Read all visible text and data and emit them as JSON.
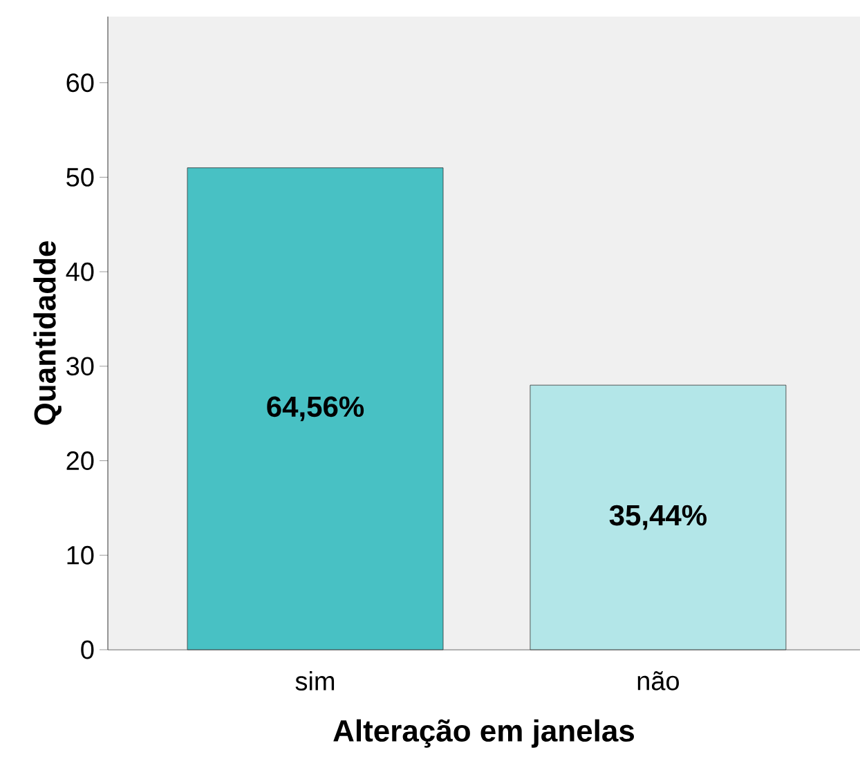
{
  "chart_data": {
    "type": "bar",
    "xlabel": "Alteração em janelas",
    "ylabel": "Quantidadde",
    "categories": [
      "sim",
      "não"
    ],
    "values": [
      51,
      28
    ],
    "colors": [
      "#48c1c4",
      "#b3e6e8"
    ],
    "annotations": [
      "64,56%",
      "35,44%"
    ],
    "ylim": [
      0,
      67
    ],
    "yticks": [
      0,
      10,
      20,
      30,
      40,
      50,
      60
    ],
    "grid": false
  }
}
